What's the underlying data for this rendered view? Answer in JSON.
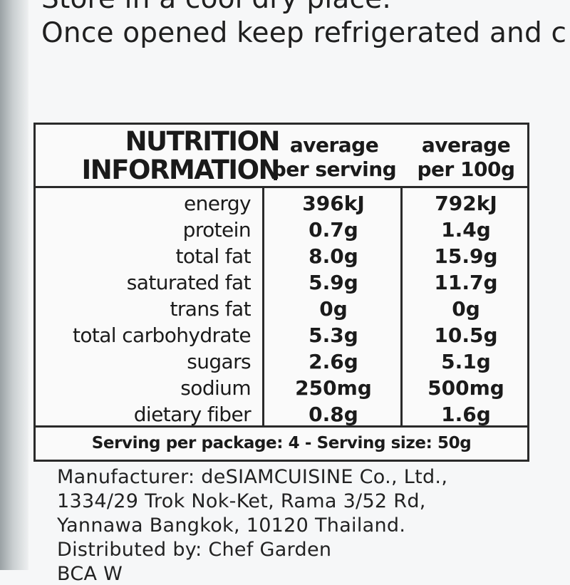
{
  "storage": {
    "line1": "Store in a cool dry place.",
    "line2": "Once opened keep refrigerated and c"
  },
  "nutrition": {
    "title_line1": "NUTRITION",
    "title_line2": "INFORMATION",
    "col_serving_line1": "average",
    "col_serving_line2": "per serving",
    "col_100g_line1": "average",
    "col_100g_line2": "per 100g",
    "rows": [
      {
        "label": "energy",
        "per_serving": "396kJ",
        "per_100g": "792kJ"
      },
      {
        "label": "protein",
        "per_serving": "0.7g",
        "per_100g": "1.4g"
      },
      {
        "label": "total fat",
        "per_serving": "8.0g",
        "per_100g": "15.9g"
      },
      {
        "label": "saturated fat",
        "per_serving": "5.9g",
        "per_100g": "11.7g"
      },
      {
        "label": "trans fat",
        "per_serving": "0g",
        "per_100g": "0g"
      },
      {
        "label": "total carbohydrate",
        "per_serving": "5.3g",
        "per_100g": "10.5g"
      },
      {
        "label": "sugars",
        "per_serving": "2.6g",
        "per_100g": "5.1g"
      },
      {
        "label": "sodium",
        "per_serving": "250mg",
        "per_100g": "500mg"
      },
      {
        "label": "dietary fiber",
        "per_serving": "0.8g",
        "per_100g": "1.6g"
      }
    ],
    "serving_info": "Serving per package: 4 - Serving size: 50g"
  },
  "manufacturer": {
    "line1": "Manufacturer: deSIAMCUISINE Co., Ltd.,",
    "line2": "1334/29 Trok Nok-Ket, Rama 3/52 Rd,",
    "line3": "Yannawa Bangkok, 10120 Thailand.",
    "line4": "Distributed by: Chef Garden",
    "line5": "BCA W"
  }
}
